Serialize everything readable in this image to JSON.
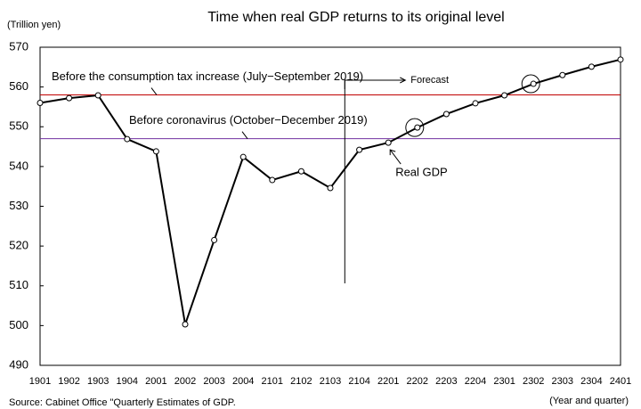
{
  "chart_data": {
    "type": "line",
    "title": "Time when real GDP returns to its original level",
    "y_label": "(Trillion yen)",
    "x_label": "(Year and quarter)",
    "source": "Source: Cabinet Office \"Quarterly Estimates of GDP.",
    "categories": [
      "1901",
      "1902",
      "1903",
      "1904",
      "2001",
      "2002",
      "2003",
      "2004",
      "2101",
      "2102",
      "2103",
      "2104",
      "2201",
      "2202",
      "2203",
      "2204",
      "2301",
      "2302",
      "2303",
      "2304",
      "2401"
    ],
    "series": [
      {
        "name": "Real GDP",
        "color": "#000000",
        "values": [
          556,
          557.2,
          557.9,
          546.9,
          543.8,
          500.3,
          521.5,
          542.4,
          536.6,
          538.8,
          534.6,
          544.2,
          546,
          549.8,
          553.2,
          555.9,
          557.9,
          560.8,
          563,
          565.1,
          566.9
        ]
      }
    ],
    "reference_lines": [
      {
        "label": "Before the consumption tax increase (July−September 2019)",
        "value": 558,
        "color": "#c00000"
      },
      {
        "label": "Before coronavirus (October−December 2019)",
        "value": 547,
        "color": "#7030a0"
      }
    ],
    "forecast_label": "Forecast",
    "ylim": [
      490,
      570
    ],
    "yticks": [
      490,
      500,
      510,
      520,
      530,
      540,
      550,
      560,
      570
    ],
    "grid": false
  }
}
